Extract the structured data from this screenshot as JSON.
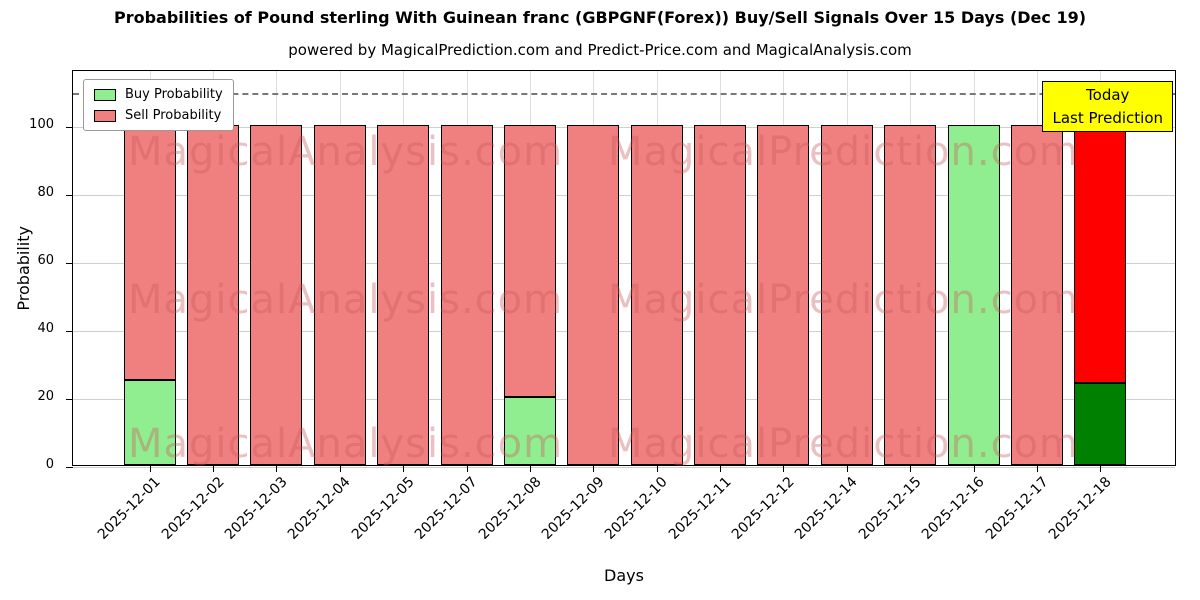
{
  "figure": {
    "title": "Probabilities of Pound sterling With Guinean franc (GBPGNF(Forex)) Buy/Sell Signals Over 15 Days (Dec 19)",
    "subtitle": "powered by MagicalPrediction.com and Predict-Price.com and MagicalAnalysis.com"
  },
  "chart_data": {
    "type": "bar",
    "stacked": true,
    "title": "Probabilities of Pound sterling With Guinean franc (GBPGNF(Forex)) Buy/Sell Signals Over 15 Days (Dec 19)",
    "subtitle": "powered by MagicalPrediction.com and Predict-Price.com and MagicalAnalysis.com",
    "xlabel": "Days",
    "ylabel": "Probability",
    "ylim": [
      0,
      116.5
    ],
    "yticks": [
      0,
      20,
      40,
      60,
      80,
      100
    ],
    "grid": true,
    "categories": [
      "2025-12-01",
      "2025-12-02",
      "2025-12-03",
      "2025-12-04",
      "2025-12-05",
      "2025-12-07",
      "2025-12-08",
      "2025-12-09",
      "2025-12-10",
      "2025-12-11",
      "2025-12-12",
      "2025-12-14",
      "2025-12-15",
      "2025-12-16",
      "2025-12-17",
      "2025-12-18"
    ],
    "series": [
      {
        "name": "Buy Probability",
        "color": "#90EE90",
        "today_color": "#008000",
        "values": [
          25,
          0,
          0,
          0,
          0,
          0,
          20,
          0,
          0,
          0,
          0,
          0,
          0,
          100,
          0,
          24
        ]
      },
      {
        "name": "Sell Probability",
        "color": "#F08080",
        "today_color": "#FF0000",
        "values": [
          75,
          100,
          100,
          100,
          100,
          100,
          80,
          100,
          100,
          100,
          100,
          100,
          100,
          0,
          100,
          76
        ]
      }
    ],
    "today_index": 15,
    "bar_edge_color": "#000000",
    "threshold_line": {
      "y": 110,
      "style": "dashed",
      "color": "#787878"
    },
    "legend": {
      "position": "upper left",
      "entries": [
        "Buy Probability",
        "Sell Probability"
      ]
    },
    "annotation": {
      "text_lines": [
        "Today",
        "Last Prediction"
      ],
      "bg_color": "#FFFF00",
      "border_color": "#000000"
    },
    "watermark": {
      "texts": [
        "MagicalAnalysis.com",
        "MagicalPrediction.com"
      ],
      "color": "#CD5C5C",
      "opacity": 0.38
    }
  }
}
